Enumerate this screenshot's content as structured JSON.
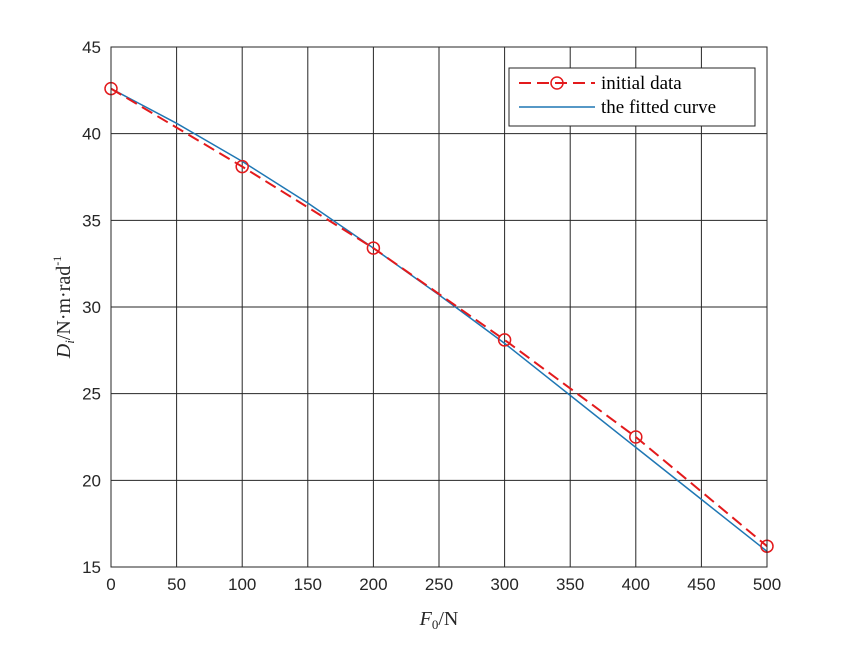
{
  "chart_data": {
    "type": "line",
    "x_axis": {
      "label_main": "F",
      "label_sub": "0",
      "label_unit": "/N",
      "min": 0,
      "max": 500,
      "ticks": [
        0,
        50,
        100,
        150,
        200,
        250,
        300,
        350,
        400,
        450,
        500
      ]
    },
    "y_axis": {
      "label_main": "D",
      "label_sub": "i",
      "label_unit": "/N·m·rad",
      "label_sup": "-1",
      "min": 15,
      "max": 45,
      "ticks": [
        15,
        20,
        25,
        30,
        35,
        40,
        45
      ]
    },
    "grid": true,
    "legend_position": "top-right",
    "series": [
      {
        "name": "initial data",
        "style": "dashed-circle-markers",
        "color": "#e31a1c",
        "x": [
          0,
          100,
          200,
          300,
          400,
          500
        ],
        "y": [
          42.6,
          38.1,
          33.4,
          28.1,
          22.5,
          16.2
        ]
      },
      {
        "name": "the fitted curve",
        "style": "solid",
        "color": "#1f77b4",
        "x": [
          0,
          50,
          100,
          150,
          200,
          250,
          300,
          350,
          400,
          450,
          500
        ],
        "y": [
          42.6,
          40.6,
          38.4,
          36.0,
          33.4,
          30.7,
          27.9,
          24.9,
          21.9,
          18.9,
          15.9
        ]
      }
    ]
  }
}
